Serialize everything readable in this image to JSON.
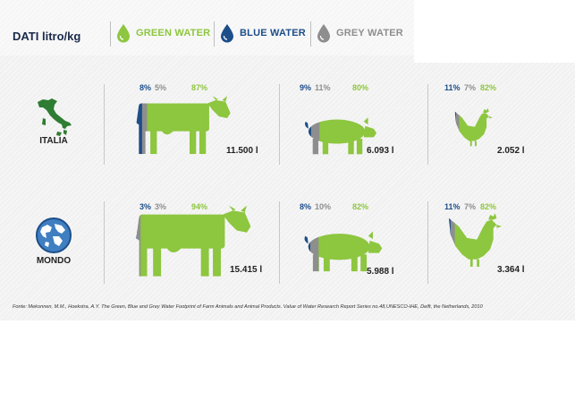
{
  "header": {
    "title": "DATI litro/kg"
  },
  "legend": [
    {
      "label": "GREEN WATER",
      "color": "#8dc63f",
      "icon": "green-drop-icon"
    },
    {
      "label": "BLUE WATER",
      "color": "#1d4e89",
      "icon": "blue-drop-icon"
    },
    {
      "label": "GREY WATER",
      "color": "#8e8e8e",
      "icon": "grey-drop-icon"
    }
  ],
  "colors": {
    "green": "#8dc63f",
    "blue": "#1d4e89",
    "grey": "#8e8e8e"
  },
  "chart_data": {
    "type": "table",
    "units": "litro/kg",
    "rows": [
      {
        "region": "ITALIA",
        "icon": "italy-map-icon",
        "animals": [
          {
            "animal": "cow",
            "icon": "cow-icon",
            "blue_label": "8%",
            "grey_label": "5%",
            "green_label": "87%",
            "blue": 8,
            "grey": 5,
            "green": 87,
            "total_label": "11.500 l",
            "total": 11500
          },
          {
            "animal": "pig",
            "icon": "pig-icon",
            "blue_label": "9%",
            "grey_label": "11%",
            "green_label": "80%",
            "blue": 9,
            "grey": 11,
            "green": 80,
            "total_label": "6.093 l",
            "total": 6093
          },
          {
            "animal": "chicken",
            "icon": "chicken-icon",
            "blue_label": "11%",
            "grey_label": "7%",
            "green_label": "82%",
            "blue": 11,
            "grey": 7,
            "green": 82,
            "total_label": "2.052 l",
            "total": 2052
          }
        ]
      },
      {
        "region": "MONDO",
        "icon": "globe-icon",
        "animals": [
          {
            "animal": "cow",
            "icon": "cow-icon",
            "blue_label": "3%",
            "grey_label": "3%",
            "green_label": "94%",
            "blue": 3,
            "grey": 3,
            "green": 94,
            "total_label": "15.415 l",
            "total": 15415
          },
          {
            "animal": "pig",
            "icon": "pig-icon",
            "blue_label": "8%",
            "grey_label": "10%",
            "green_label": "82%",
            "blue": 8,
            "grey": 10,
            "green": 82,
            "total_label": "5.988 l",
            "total": 5988
          },
          {
            "animal": "chicken",
            "icon": "chicken-icon",
            "blue_label": "11%",
            "grey_label": "7%",
            "green_label": "82%",
            "blue": 11,
            "grey": 7,
            "green": 82,
            "total_label": "3.364 l",
            "total": 3364
          }
        ]
      }
    ]
  },
  "source": "Fonte: Mekonnen, M.M., Hoekstra, A.Y. The Green, Blue and Grey Water Footprint of Farm Animals and Animal Products. Value of Water Research Report Series no.48,UNESCO-IHE, Delft, the Netherlands, 2010"
}
